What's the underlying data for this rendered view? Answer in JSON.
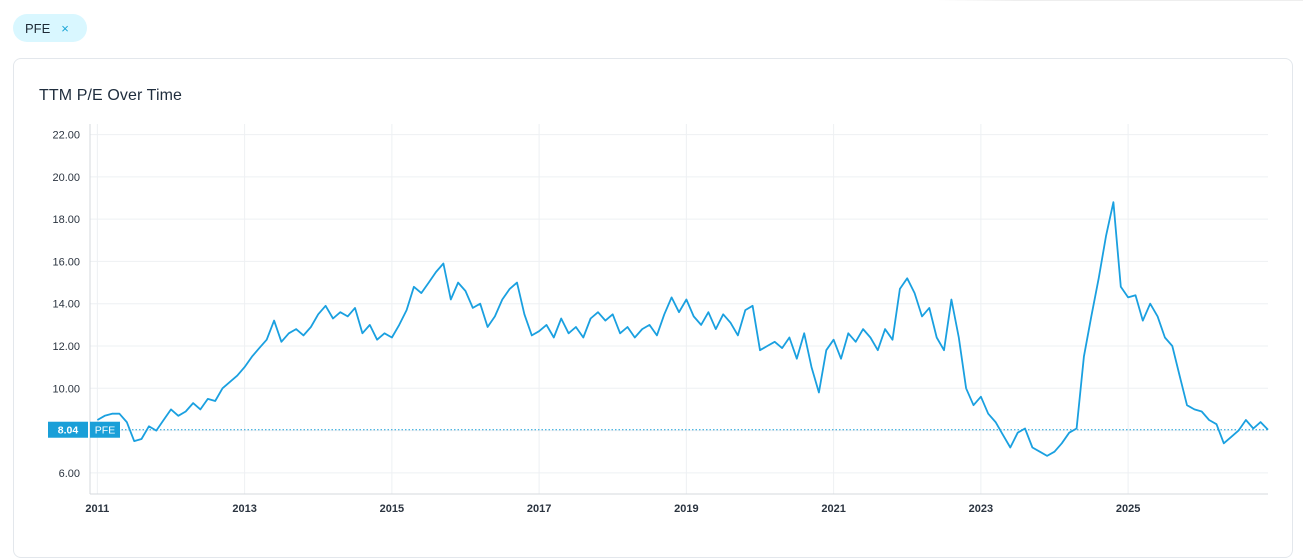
{
  "filter_chip": {
    "label": "PFE",
    "close_glyph": "×",
    "close_icon": "close-icon"
  },
  "card": {
    "title": "TTM P/E Over Time"
  },
  "colors": {
    "line": "#1aa0e0",
    "marker_bg": "#1a9fd8",
    "chip_bg": "#d9f7ff",
    "grid": "#eef0f3"
  },
  "chart_data": {
    "type": "line",
    "title": "TTM P/E Over Time",
    "xlabel": "",
    "ylabel": "",
    "series": [
      {
        "name": "PFE",
        "points": [
          [
            2011.0,
            8.5
          ],
          [
            2011.1,
            8.7
          ],
          [
            2011.2,
            8.8
          ],
          [
            2011.3,
            8.8
          ],
          [
            2011.4,
            8.4
          ],
          [
            2011.5,
            7.5
          ],
          [
            2011.6,
            7.6
          ],
          [
            2011.7,
            8.2
          ],
          [
            2011.8,
            8.0
          ],
          [
            2011.9,
            8.5
          ],
          [
            2012.0,
            9.0
          ],
          [
            2012.1,
            8.7
          ],
          [
            2012.2,
            8.9
          ],
          [
            2012.3,
            9.3
          ],
          [
            2012.4,
            9.0
          ],
          [
            2012.5,
            9.5
          ],
          [
            2012.6,
            9.4
          ],
          [
            2012.7,
            10.0
          ],
          [
            2012.8,
            10.3
          ],
          [
            2012.9,
            10.6
          ],
          [
            2013.0,
            11.0
          ],
          [
            2013.1,
            11.5
          ],
          [
            2013.2,
            11.9
          ],
          [
            2013.3,
            12.3
          ],
          [
            2013.4,
            13.2
          ],
          [
            2013.5,
            12.2
          ],
          [
            2013.6,
            12.6
          ],
          [
            2013.7,
            12.8
          ],
          [
            2013.8,
            12.5
          ],
          [
            2013.9,
            12.9
          ],
          [
            2014.0,
            13.5
          ],
          [
            2014.1,
            13.9
          ],
          [
            2014.2,
            13.3
          ],
          [
            2014.3,
            13.6
          ],
          [
            2014.4,
            13.4
          ],
          [
            2014.5,
            13.8
          ],
          [
            2014.6,
            12.6
          ],
          [
            2014.7,
            13.0
          ],
          [
            2014.8,
            12.3
          ],
          [
            2014.9,
            12.6
          ],
          [
            2015.0,
            12.4
          ],
          [
            2015.1,
            13.0
          ],
          [
            2015.2,
            13.7
          ],
          [
            2015.3,
            14.8
          ],
          [
            2015.4,
            14.5
          ],
          [
            2015.5,
            15.0
          ],
          [
            2015.6,
            15.5
          ],
          [
            2015.7,
            15.9
          ],
          [
            2015.8,
            14.2
          ],
          [
            2015.9,
            15.0
          ],
          [
            2016.0,
            14.6
          ],
          [
            2016.1,
            13.8
          ],
          [
            2016.2,
            14.0
          ],
          [
            2016.3,
            12.9
          ],
          [
            2016.4,
            13.4
          ],
          [
            2016.5,
            14.2
          ],
          [
            2016.6,
            14.7
          ],
          [
            2016.7,
            15.0
          ],
          [
            2016.8,
            13.5
          ],
          [
            2016.9,
            12.5
          ],
          [
            2017.0,
            12.7
          ],
          [
            2017.1,
            13.0
          ],
          [
            2017.2,
            12.4
          ],
          [
            2017.3,
            13.3
          ],
          [
            2017.4,
            12.6
          ],
          [
            2017.5,
            12.9
          ],
          [
            2017.6,
            12.4
          ],
          [
            2017.7,
            13.3
          ],
          [
            2017.8,
            13.6
          ],
          [
            2017.9,
            13.2
          ],
          [
            2018.0,
            13.5
          ],
          [
            2018.1,
            12.6
          ],
          [
            2018.2,
            12.9
          ],
          [
            2018.3,
            12.4
          ],
          [
            2018.4,
            12.8
          ],
          [
            2018.5,
            13.0
          ],
          [
            2018.6,
            12.5
          ],
          [
            2018.7,
            13.5
          ],
          [
            2018.8,
            14.3
          ],
          [
            2018.9,
            13.6
          ],
          [
            2019.0,
            14.2
          ],
          [
            2019.1,
            13.4
          ],
          [
            2019.2,
            13.0
          ],
          [
            2019.3,
            13.6
          ],
          [
            2019.4,
            12.8
          ],
          [
            2019.5,
            13.5
          ],
          [
            2019.6,
            13.1
          ],
          [
            2019.7,
            12.5
          ],
          [
            2019.8,
            13.7
          ],
          [
            2019.9,
            13.9
          ],
          [
            2020.0,
            11.8
          ],
          [
            2020.1,
            12.0
          ],
          [
            2020.2,
            12.2
          ],
          [
            2020.3,
            11.9
          ],
          [
            2020.4,
            12.4
          ],
          [
            2020.5,
            11.4
          ],
          [
            2020.6,
            12.6
          ],
          [
            2020.7,
            11.0
          ],
          [
            2020.8,
            9.8
          ],
          [
            2020.9,
            11.8
          ],
          [
            2021.0,
            12.3
          ],
          [
            2021.1,
            11.4
          ],
          [
            2021.2,
            12.6
          ],
          [
            2021.3,
            12.2
          ],
          [
            2021.4,
            12.8
          ],
          [
            2021.5,
            12.4
          ],
          [
            2021.6,
            11.8
          ],
          [
            2021.7,
            12.8
          ],
          [
            2021.8,
            12.3
          ],
          [
            2021.9,
            14.7
          ],
          [
            2022.0,
            15.2
          ],
          [
            2022.1,
            14.5
          ],
          [
            2022.2,
            13.4
          ],
          [
            2022.3,
            13.8
          ],
          [
            2022.4,
            12.4
          ],
          [
            2022.5,
            11.8
          ],
          [
            2022.6,
            14.2
          ],
          [
            2022.7,
            12.4
          ],
          [
            2022.8,
            10.0
          ],
          [
            2022.9,
            9.2
          ],
          [
            2023.0,
            9.6
          ],
          [
            2023.1,
            8.8
          ],
          [
            2023.2,
            8.4
          ],
          [
            2023.3,
            7.8
          ],
          [
            2023.4,
            7.2
          ],
          [
            2023.5,
            7.9
          ],
          [
            2023.6,
            8.1
          ],
          [
            2023.7,
            7.2
          ],
          [
            2023.8,
            7.0
          ],
          [
            2023.9,
            6.8
          ],
          [
            2024.0,
            7.0
          ],
          [
            2024.1,
            7.4
          ],
          [
            2024.2,
            7.9
          ],
          [
            2024.3,
            8.1
          ],
          [
            2024.4,
            11.5
          ],
          [
            2024.5,
            13.4
          ],
          [
            2024.6,
            15.2
          ],
          [
            2024.7,
            17.2
          ],
          [
            2024.8,
            18.8
          ],
          [
            2024.9,
            14.8
          ],
          [
            2025.0,
            14.3
          ],
          [
            2025.1,
            14.4
          ],
          [
            2025.2,
            13.2
          ],
          [
            2025.3,
            14.0
          ],
          [
            2025.4,
            13.4
          ],
          [
            2025.5,
            12.4
          ],
          [
            2025.6,
            12.0
          ],
          [
            2025.7,
            10.6
          ],
          [
            2025.8,
            9.2
          ],
          [
            2025.9,
            9.0
          ],
          [
            2026.0,
            8.9
          ],
          [
            2026.1,
            8.5
          ],
          [
            2026.2,
            8.3
          ],
          [
            2026.3,
            7.4
          ],
          [
            2026.4,
            7.7
          ],
          [
            2026.5,
            8.0
          ],
          [
            2026.6,
            8.5
          ],
          [
            2026.7,
            8.1
          ],
          [
            2026.8,
            8.4
          ],
          [
            2026.9,
            8.04
          ]
        ]
      }
    ],
    "ylim": [
      5.0,
      22.5
    ],
    "xlim": [
      2010.9,
      2026.9
    ],
    "x_ticks": [
      2011,
      2013,
      2015,
      2017,
      2019,
      2021,
      2023,
      2025
    ],
    "y_ticks": [
      6.0,
      8.0,
      10.0,
      12.0,
      14.0,
      16.0,
      18.0,
      20.0,
      22.0
    ],
    "current_value": {
      "value": 8.04,
      "label": "8.04",
      "series_label": "PFE"
    },
    "grid": true,
    "legend": "none"
  }
}
